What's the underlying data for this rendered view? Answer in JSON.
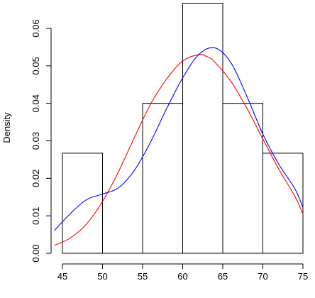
{
  "chart_data": {
    "type": "histogram",
    "title": "",
    "xlabel": "",
    "ylabel": "Density",
    "xlim": [
      45,
      75
    ],
    "ylim": [
      0,
      0.067
    ],
    "grid": false,
    "legend": "none",
    "x_ticks": [
      "45",
      "50",
      "55",
      "60",
      "65",
      "70",
      "75"
    ],
    "y_ticks": [
      "0.00",
      "0.01",
      "0.02",
      "0.03",
      "0.04",
      "0.05",
      "0.06"
    ],
    "bins": [
      {
        "x0": 45,
        "x1": 50,
        "density": 0.0267
      },
      {
        "x0": 50,
        "x1": 55,
        "density": 0.0
      },
      {
        "x0": 55,
        "x1": 60,
        "density": 0.04
      },
      {
        "x0": 60,
        "x1": 65,
        "density": 0.0667
      },
      {
        "x0": 65,
        "x1": 70,
        "density": 0.04
      },
      {
        "x0": 70,
        "x1": 75,
        "density": 0.0267
      }
    ],
    "series": [
      {
        "color": "#ff0000",
        "x": [
          44,
          46,
          48,
          50,
          52,
          54,
          56,
          58,
          60,
          62,
          63,
          64,
          66,
          68,
          70,
          72,
          74,
          75
        ],
        "y": [
          0.0021,
          0.0041,
          0.0078,
          0.0138,
          0.0218,
          0.031,
          0.0398,
          0.0465,
          0.0513,
          0.053,
          0.0525,
          0.051,
          0.0459,
          0.0387,
          0.0305,
          0.0224,
          0.0152,
          0.0105
        ]
      },
      {
        "color": "#0000ff",
        "x": [
          44,
          46,
          48,
          50,
          52,
          54,
          56,
          58,
          60,
          62,
          64,
          66,
          68,
          70,
          72,
          74,
          75
        ],
        "y": [
          0.0061,
          0.0106,
          0.0143,
          0.0158,
          0.0175,
          0.0222,
          0.0297,
          0.0386,
          0.0468,
          0.053,
          0.0548,
          0.0509,
          0.0419,
          0.0318,
          0.0237,
          0.0172,
          0.0122
        ]
      }
    ]
  }
}
